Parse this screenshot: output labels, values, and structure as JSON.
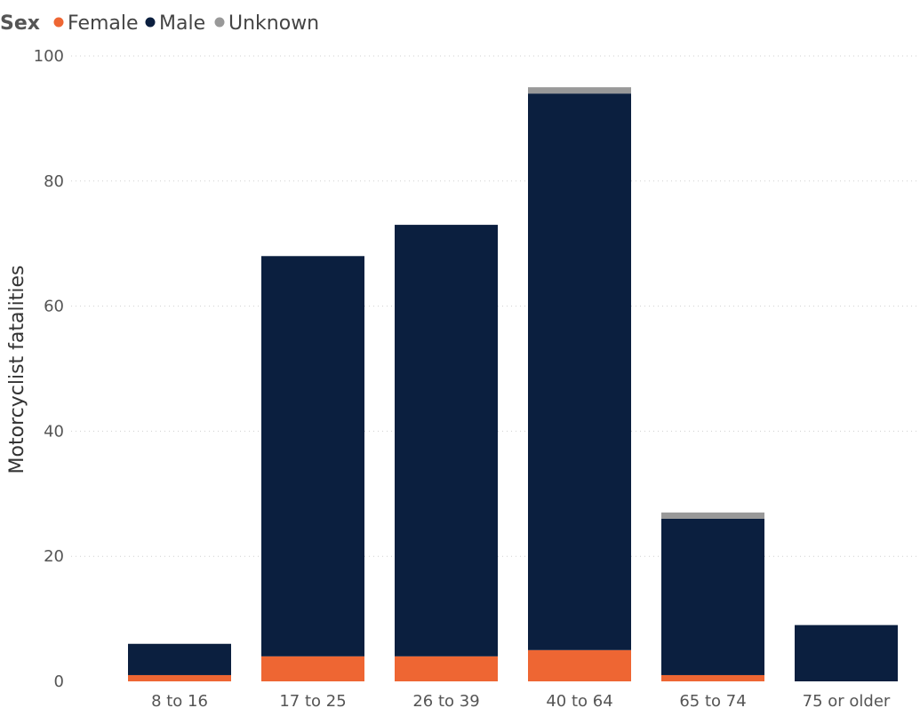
{
  "chart_data": {
    "type": "bar",
    "stacked": true,
    "title": "",
    "xlabel": "",
    "ylabel": "Motorcyclist fatalities",
    "ylim": [
      0,
      100
    ],
    "yticks": [
      0,
      20,
      40,
      60,
      80,
      100
    ],
    "grid": true,
    "legend": {
      "title": "Sex",
      "placement": "top-left",
      "entries": [
        "Female",
        "Male",
        "Unknown"
      ]
    },
    "categories": [
      "8 to 16",
      "17 to 25",
      "26 to 39",
      "40 to 64",
      "65 to 74",
      "75 or older"
    ],
    "series": [
      {
        "name": "Female",
        "color": "#ee6633",
        "values": [
          1,
          4,
          4,
          5,
          1,
          0
        ]
      },
      {
        "name": "Male",
        "color": "#0b1f3f",
        "values": [
          5,
          64,
          69,
          89,
          25,
          9
        ]
      },
      {
        "name": "Unknown",
        "color": "#999999",
        "values": [
          0,
          0,
          0,
          1,
          1,
          0
        ]
      }
    ]
  }
}
